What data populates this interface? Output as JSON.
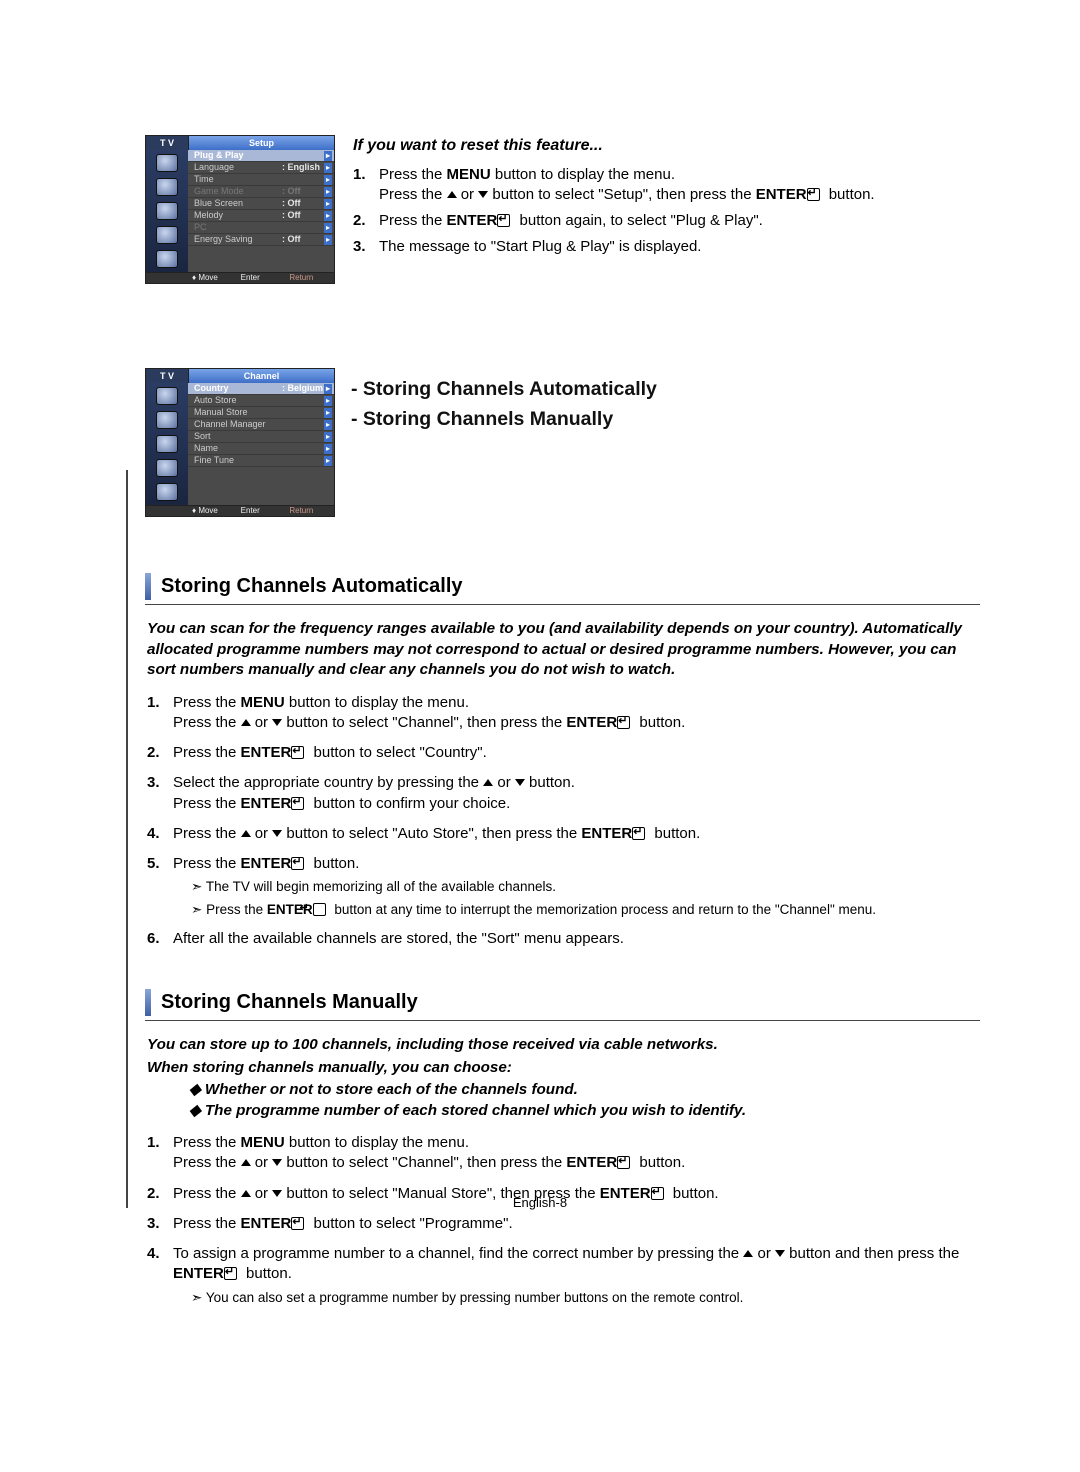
{
  "setup_menu": {
    "tv_label": "T V",
    "title": "Setup",
    "items": [
      {
        "label": "Plug & Play",
        "value": "",
        "sel": true
      },
      {
        "label": "Language",
        "value": ": English"
      },
      {
        "label": "Time",
        "value": ""
      },
      {
        "label": "Game Mode",
        "value": ": Off",
        "dim": true
      },
      {
        "label": "Blue Screen",
        "value": ": Off"
      },
      {
        "label": "Melody",
        "value": ": Off"
      },
      {
        "label": "PC",
        "value": "",
        "dim": true
      },
      {
        "label": "Energy Saving",
        "value": ": Off"
      }
    ],
    "footer": {
      "move": "Move",
      "enter": "Enter",
      "ret": "Return"
    }
  },
  "channel_menu": {
    "tv_label": "T V",
    "title": "Channel",
    "items": [
      {
        "label": "Country",
        "value": ": Belgium",
        "sel": true
      },
      {
        "label": "Auto Store",
        "value": ""
      },
      {
        "label": "Manual Store",
        "value": ""
      },
      {
        "label": "Channel Manager",
        "value": ""
      },
      {
        "label": "Sort",
        "value": ""
      },
      {
        "label": "Name",
        "value": ""
      },
      {
        "label": "Fine Tune",
        "value": ""
      }
    ],
    "footer": {
      "move": "Move",
      "enter": "Enter",
      "ret": "Return"
    }
  },
  "reset_heading": "If you want to reset this feature...",
  "reset_steps": {
    "s1a": "Press the ",
    "s1b": " button to display the menu.",
    "s1c": "Press the ",
    "s1d": " button to select \"Setup\", then press the ",
    "s1e": " button.",
    "s2a": "Press the ",
    "s2b": " button again, to select \"Plug & Play\".",
    "s3": "The message to \"Start Plug & Play\" is displayed."
  },
  "mid_headings": {
    "h1": "- Storing Channels Automatically",
    "h2": "- Storing Channels Manually"
  },
  "auto_section": {
    "title": "Storing Channels Automatically",
    "intro": "You can scan for the frequency ranges available to you (and availability depends on your country). Automatically allocated programme numbers may not correspond to actual or desired programme numbers. However, you can sort numbers manually and clear any channels you do not wish to watch.",
    "s1a": "Press the ",
    "s1b": " button to display the menu.",
    "s1c": "Press the ",
    "s1d": " button to select \"Channel\", then press the ",
    "s1e": " button.",
    "s2a": "Press the ",
    "s2b": " button to select \"Country\".",
    "s3a": "Select the appropriate country by pressing the ",
    "s3b": " button.",
    "s3c": "Press the ",
    "s3d": " button to confirm your choice.",
    "s4a": "Press the ",
    "s4b": " button to select \"Auto Store\", then press the ",
    "s4c": " button.",
    "s5a": "Press the ",
    "s5b": " button.",
    "s5_note1": "The TV will begin memorizing all of the available channels.",
    "s5_note2a": "Press the ",
    "s5_note2b": " button at any time to interrupt the memorization process and return to the \"Channel\" menu.",
    "s6": "After all the available channels are stored, the \"Sort\" menu appears."
  },
  "manual_section": {
    "title": "Storing Channels Manually",
    "intro1": "You can store up to 100 channels, including those received via cable networks.",
    "intro2": "When storing channels manually, you can choose:",
    "d1": "Whether or not to store each of the channels found.",
    "d2": "The programme number of each stored channel which you wish to identify.",
    "s1a": "Press the ",
    "s1b": " button to display the menu.",
    "s1c": "Press the ",
    "s1d": " button to select \"Channel\", then press the ",
    "s1e": " button.",
    "s2a": "Press the ",
    "s2b": " button to select \"Manual Store\", then press the ",
    "s2c": " button.",
    "s3a": "Press the ",
    "s3b": " button to select \"Programme\".",
    "s4a": "To assign a programme number to a channel, find the correct number by pressing the ",
    "s4b": " button and then press the ",
    "s4c": " button.",
    "s4_note": "You can also set a programme number by pressing number buttons on the remote control."
  },
  "tokens": {
    "menu": "MENU",
    "enter": "ENTER",
    "or": " or ",
    "footer": "English-8"
  },
  "nums": {
    "n1": "1.",
    "n2": "2.",
    "n3": "3.",
    "n4": "4.",
    "n5": "5.",
    "n6": "6."
  }
}
